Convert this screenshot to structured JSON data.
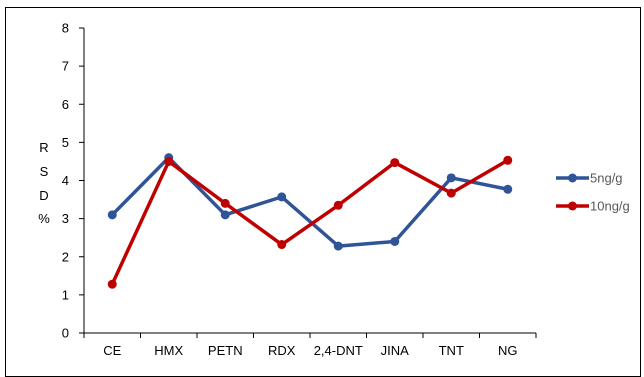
{
  "chart_data": {
    "type": "line",
    "title": "",
    "xlabel": "",
    "ylabel": "RSD%",
    "ylabel_chars": [
      "R",
      "S",
      "D",
      "%"
    ],
    "ylim": [
      0,
      8
    ],
    "yticks": [
      0,
      1,
      2,
      3,
      4,
      5,
      6,
      7,
      8
    ],
    "grid": false,
    "legend_position": "right",
    "categories": [
      "CE",
      "HMX",
      "PETN",
      "RDX",
      "2,4-DNT",
      "JINA",
      "TNT",
      "NG"
    ],
    "series": [
      {
        "name": "5ng/g",
        "color": "#2f5597",
        "values": [
          3.1,
          4.6,
          3.1,
          3.57,
          2.28,
          2.4,
          4.07,
          3.77
        ]
      },
      {
        "name": "10ng/g",
        "color": "#c00000",
        "values": [
          1.28,
          4.5,
          3.4,
          2.32,
          3.35,
          4.47,
          3.67,
          4.53
        ]
      }
    ]
  }
}
